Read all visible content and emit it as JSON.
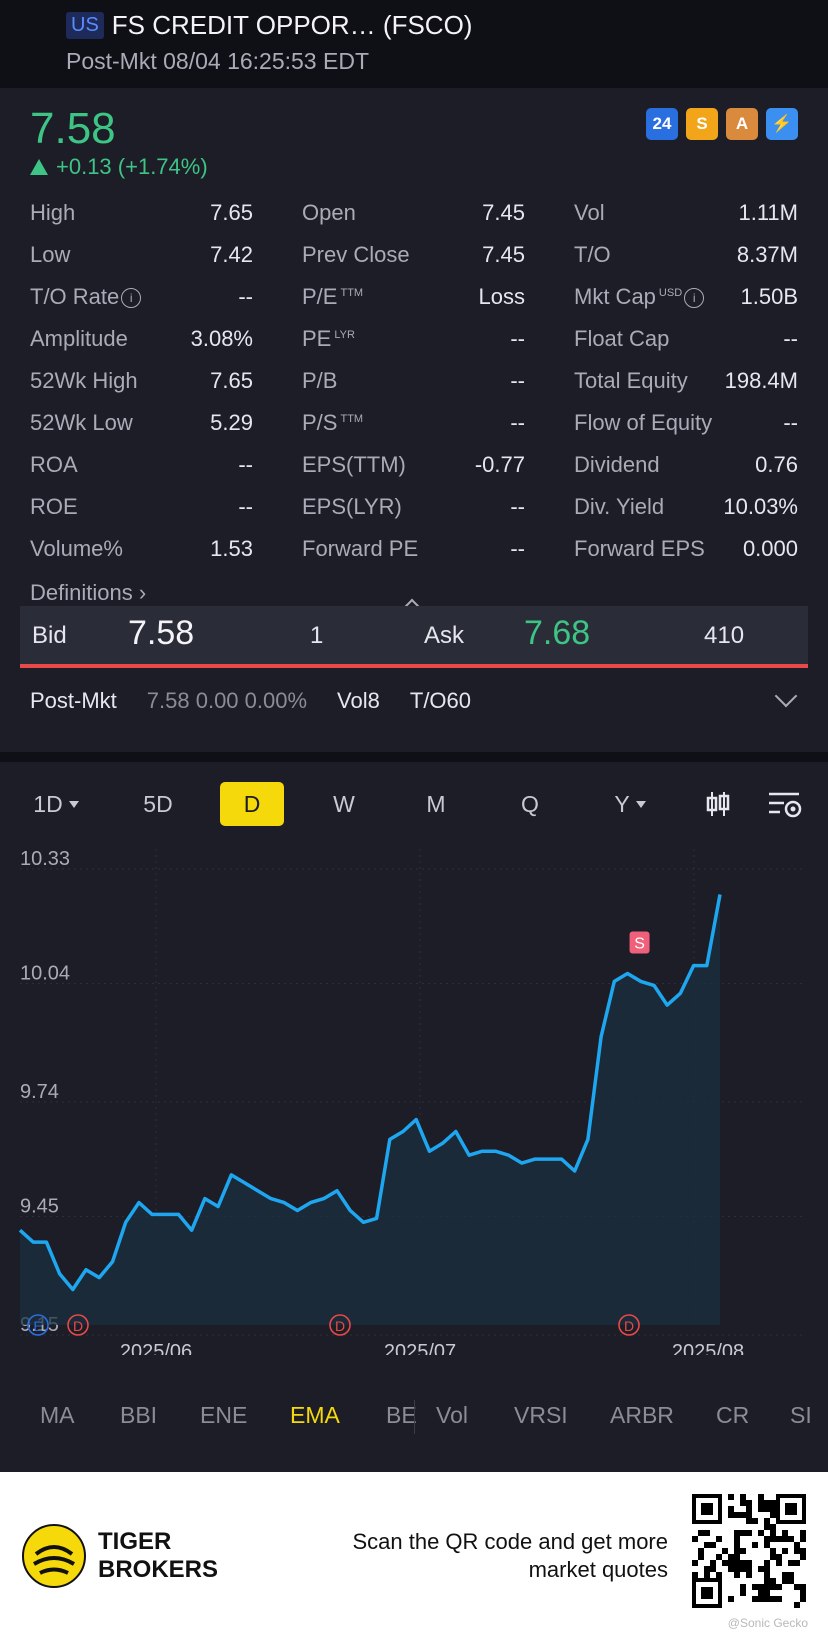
{
  "header": {
    "market_badge": "US",
    "title": "FS CREDIT OPPOR… (FSCO)",
    "subtitle": "Post-Mkt 08/04 16:25:53 EDT"
  },
  "quote": {
    "price": "7.58",
    "change": "+0.13 (+1.74%)",
    "up_color": "#3ec484",
    "icons": {
      "i24": "24",
      "s": "S",
      "a": "A",
      "bolt": "⚡"
    }
  },
  "stats": [
    [
      {
        "label": "High",
        "value": "7.65"
      },
      {
        "label": "Open",
        "value": "7.45"
      },
      {
        "label": "Vol",
        "value": "1.11M"
      }
    ],
    [
      {
        "label": "Low",
        "value": "7.42"
      },
      {
        "label": "Prev Close",
        "value": "7.45"
      },
      {
        "label": "T/O",
        "value": "8.37M"
      }
    ],
    [
      {
        "label": "T/O Rate",
        "value": "--"
      },
      {
        "label": "P/E",
        "sup": "TTM",
        "value": "Loss"
      },
      {
        "label": "Mkt Cap",
        "sup": "USD",
        "value": "1.50B"
      }
    ],
    [
      {
        "label": "Amplitude",
        "value": "3.08%"
      },
      {
        "label": "PE",
        "sup": "LYR",
        "value": "--"
      },
      {
        "label": "Float Cap",
        "value": "--"
      }
    ],
    [
      {
        "label": "52Wk High",
        "value": "7.65"
      },
      {
        "label": "P/B",
        "value": "--"
      },
      {
        "label": "Total Equity",
        "value": "198.4M"
      }
    ],
    [
      {
        "label": "52Wk Low",
        "value": "5.29"
      },
      {
        "label": "P/S",
        "sup": "TTM",
        "value": "--"
      },
      {
        "label": "Flow of Equity",
        "value": "--"
      }
    ],
    [
      {
        "label": "ROA",
        "value": "--"
      },
      {
        "label": "EPS(TTM)",
        "value": "-0.77"
      },
      {
        "label": "Dividend",
        "value": "0.76"
      }
    ],
    [
      {
        "label": "ROE",
        "value": "--"
      },
      {
        "label": "EPS(LYR)",
        "value": "--"
      },
      {
        "label": "Div. Yield",
        "value": "10.03%"
      }
    ],
    [
      {
        "label": "Volume%",
        "value": "1.53"
      },
      {
        "label": "Forward PE",
        "value": "--"
      },
      {
        "label": "Forward EPS",
        "value": "0.000"
      }
    ]
  ],
  "definitions": "Definitions",
  "bid_ask": {
    "bid_label": "Bid",
    "bid": "7.58",
    "bid_size": "1",
    "ask_label": "Ask",
    "ask": "7.68",
    "ask_size": "410"
  },
  "post_market": {
    "label": "Post-Mkt",
    "values": "7.58 0.00 0.00%",
    "vol": "Vol8",
    "to": "T/O60"
  },
  "chart_tabs": [
    "1D",
    "5D",
    "D",
    "W",
    "M",
    "Q",
    "Y"
  ],
  "active_tab": "D",
  "chart_data": {
    "type": "line",
    "y_ticks": [
      "10.33",
      "10.04",
      "9.74",
      "9.45",
      "9.15"
    ],
    "ylim": [
      9.15,
      10.33
    ],
    "x_ticks": [
      "2025/06",
      "2025/07",
      "2025/08"
    ],
    "line_color": "#1ea7f0",
    "values": [
      9.39,
      9.36,
      9.36,
      9.28,
      9.24,
      9.29,
      9.27,
      9.31,
      9.41,
      9.46,
      9.43,
      9.43,
      9.43,
      9.39,
      9.47,
      9.45,
      9.53,
      9.51,
      9.49,
      9.47,
      9.46,
      9.44,
      9.46,
      9.47,
      9.49,
      9.44,
      9.41,
      9.42,
      9.62,
      9.64,
      9.67,
      9.59,
      9.61,
      9.64,
      9.58,
      9.59,
      9.59,
      9.58,
      9.56,
      9.57,
      9.57,
      9.57,
      9.54,
      9.62,
      9.88,
      10.02,
      10.04,
      10.02,
      10.01,
      9.96,
      9.99,
      10.06,
      10.06,
      10.24
    ],
    "markers": {
      "dividend": "D",
      "sell": "S",
      "events": "E"
    }
  },
  "indicators": [
    "MA",
    "BBI",
    "ENE",
    "EMA",
    "BE",
    "Vol",
    "VRSI",
    "ARBR",
    "CR",
    "SI"
  ],
  "active_indicator": "EMA",
  "footer": {
    "brand_line1": "TIGER",
    "brand_line2": "BROKERS",
    "scan_line1": "Scan the QR code and get more",
    "scan_line2": "market quotes",
    "watermark": "@Sonic Gecko"
  }
}
